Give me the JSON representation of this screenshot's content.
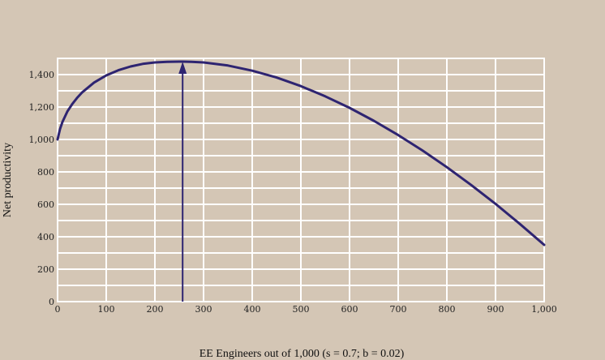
{
  "chart_data": {
    "type": "line",
    "title": "",
    "xlabel": "EE Engineers out of 1,000 (s = 0.7; b = 0.02)",
    "ylabel": "Net productivity",
    "xlim": [
      0,
      1000
    ],
    "ylim": [
      0,
      1500
    ],
    "grid": true,
    "legend": "none",
    "x_ticks": [
      "0",
      "100",
      "200",
      "300",
      "400",
      "500",
      "600",
      "700",
      "800",
      "900",
      "1,000"
    ],
    "x_tick_values": [
      0,
      100,
      200,
      300,
      400,
      500,
      600,
      700,
      800,
      900,
      1000
    ],
    "y_ticks": [
      "0",
      "200",
      "400",
      "600",
      "800",
      "1,000",
      "1,200",
      "1,400"
    ],
    "y_tick_values": [
      0,
      200,
      400,
      600,
      800,
      1000,
      1200,
      1400
    ],
    "series": [
      {
        "x": [
          0,
          5,
          10,
          20,
          30,
          40,
          50,
          75,
          100,
          125,
          150,
          175,
          200,
          225,
          250,
          257,
          275,
          300,
          350,
          400,
          450,
          500,
          550,
          600,
          650,
          700,
          750,
          800,
          850,
          900,
          950,
          1000
        ],
        "y": [
          1000,
          1064,
          1108,
          1172,
          1218,
          1256,
          1289,
          1351,
          1395,
          1427,
          1450,
          1466,
          1475,
          1479,
          1480,
          1480,
          1479,
          1475,
          1456,
          1424,
          1382,
          1329,
          1266,
          1195,
          1115,
          1027,
          932,
          829,
          719,
          603,
          479,
          350
        ],
        "color": "#2e2471"
      }
    ],
    "annotations": [
      {
        "type": "arrow",
        "x": 257,
        "from_y": 0,
        "to_y": 1480,
        "color": "#2e2471"
      }
    ],
    "colors": {
      "background": "#d4c6b5",
      "grid": "#ffffff",
      "line": "#2e2471"
    }
  }
}
